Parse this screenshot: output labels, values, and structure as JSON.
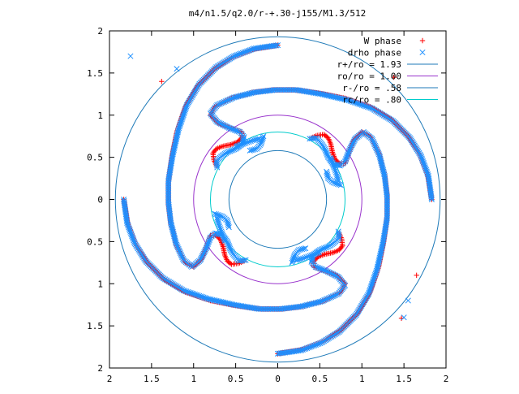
{
  "chart_data": {
    "type": "scatter",
    "title": "m4/n1.5/q2.0/r-+.30-j155/M1.3/512",
    "xlim": [
      -2,
      2
    ],
    "ylim": [
      -2,
      2
    ],
    "x_tick_labels": [
      "2",
      "1.5",
      "1",
      "0.5",
      "0",
      "0.5",
      "1",
      "1.5",
      "2"
    ],
    "y_tick_labels": [
      "2",
      "1.5",
      "1",
      "0.5",
      "0",
      "0.5",
      "1",
      "1.5",
      "2"
    ],
    "grid": false,
    "legend_position": "top-right",
    "series": [
      {
        "name": "W phase",
        "marker": "plus",
        "color": "#ff0000",
        "arms": 4,
        "shape_note": "four symmetric phase arms spiralling from r≈0.6 out to r≈1.9",
        "base_arm": [
          [
            0.4,
            0.73
          ],
          [
            0.47,
            0.76
          ],
          [
            0.55,
            0.77
          ],
          [
            0.6,
            0.73
          ],
          [
            0.63,
            0.66
          ],
          [
            0.65,
            0.56
          ],
          [
            0.68,
            0.48
          ],
          [
            0.74,
            0.42
          ],
          [
            0.8,
            0.43
          ],
          [
            0.84,
            0.55
          ],
          [
            0.9,
            0.7
          ],
          [
            1.0,
            0.8
          ],
          [
            1.1,
            0.75
          ],
          [
            1.2,
            0.55
          ],
          [
            1.27,
            0.3
          ],
          [
            1.3,
            0.05
          ],
          [
            1.3,
            -0.2
          ],
          [
            1.26,
            -0.5
          ],
          [
            1.2,
            -0.8
          ],
          [
            1.1,
            -1.1
          ],
          [
            0.95,
            -1.35
          ],
          [
            0.75,
            -1.55
          ],
          [
            0.55,
            -1.68
          ],
          [
            0.3,
            -1.78
          ],
          [
            0.0,
            -1.83
          ]
        ],
        "scattered_points": [
          [
            1.65,
            -0.9
          ],
          [
            1.47,
            -1.41
          ],
          [
            1.38,
            1.45
          ],
          [
            -1.38,
            1.4
          ]
        ]
      },
      {
        "name": "drho phase",
        "marker": "cross",
        "color": "#1e90ff",
        "arms": 4,
        "shape_note": "follows the W phase arms; inner ends near r≈0.6 are separate short segments",
        "base_arm": [
          [
            0.38,
            0.72
          ],
          [
            0.46,
            0.73
          ],
          [
            0.52,
            0.66
          ],
          [
            0.56,
            0.6
          ],
          [
            0.6,
            0.5
          ],
          [
            0.66,
            0.42
          ],
          [
            0.74,
            0.4
          ],
          [
            0.8,
            0.45
          ],
          [
            0.85,
            0.58
          ],
          [
            0.92,
            0.72
          ],
          [
            1.02,
            0.8
          ],
          [
            1.12,
            0.72
          ],
          [
            1.21,
            0.52
          ],
          [
            1.27,
            0.28
          ],
          [
            1.3,
            0.03
          ],
          [
            1.3,
            -0.22
          ],
          [
            1.25,
            -0.52
          ],
          [
            1.18,
            -0.83
          ],
          [
            1.08,
            -1.12
          ],
          [
            0.93,
            -1.37
          ],
          [
            0.73,
            -1.57
          ],
          [
            0.52,
            -1.7
          ],
          [
            0.28,
            -1.79
          ],
          [
            0.0,
            -1.83
          ]
        ],
        "inner_segments": [
          [
            [
              0.63,
              0.49
            ],
            [
              0.67,
              0.38
            ],
            [
              0.7,
              0.3
            ],
            [
              0.72,
              0.22
            ]
          ],
          [
            [
              -0.17,
              0.75
            ],
            [
              -0.2,
              0.66
            ],
            [
              -0.25,
              0.6
            ],
            [
              -0.33,
              0.58
            ]
          ]
        ],
        "scattered_points": [
          [
            1.55,
            -1.2
          ],
          [
            1.5,
            -1.4
          ],
          [
            -1.75,
            1.7
          ],
          [
            -1.2,
            1.55
          ]
        ]
      },
      {
        "name": "r+/ro = 1.93",
        "marker": "line",
        "color": "#1e7ab8",
        "circle_radius": 1.93
      },
      {
        "name": "ro/ro = 1.00",
        "marker": "line",
        "color": "#9933cc",
        "circle_radius": 1.0
      },
      {
        "name": "r-/ro = .58",
        "marker": "line",
        "color": "#1e7ab8",
        "circle_radius": 0.58
      },
      {
        "name": "rc/ro = .80",
        "marker": "line",
        "color": "#00cccc",
        "circle_radius": 0.8
      }
    ]
  }
}
